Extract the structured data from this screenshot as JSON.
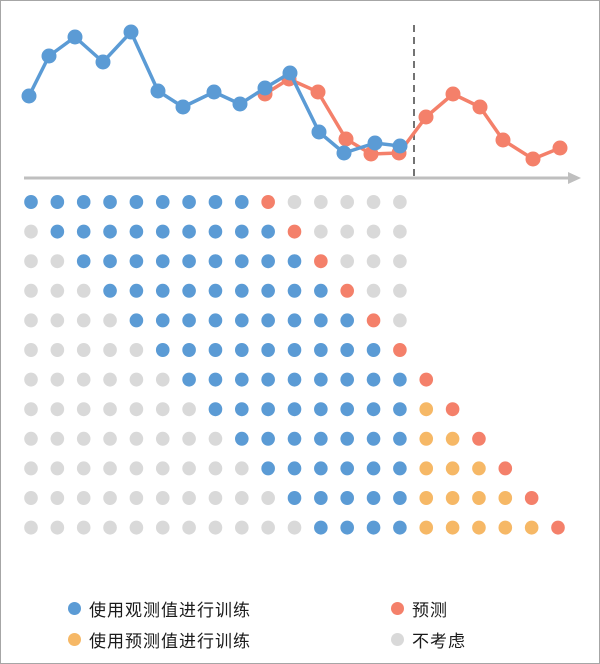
{
  "colors": {
    "observed": "#5b9bd5",
    "prediction": "#f4806a",
    "predicted_train": "#f6b866",
    "ignored": "#d9d9d9",
    "axis": "#bfbfbf",
    "divider": "#737373"
  },
  "legend": {
    "items": [
      {
        "key": "observed",
        "label": "使用观测值进行训练",
        "color": "#5b9bd5"
      },
      {
        "key": "prediction",
        "label": "预测",
        "color": "#f4806a"
      },
      {
        "key": "predicted_train",
        "label": "使用预测值进行训练",
        "color": "#f6b866"
      },
      {
        "key": "ignored",
        "label": "不考虑",
        "color": "#d9d9d9"
      }
    ]
  },
  "chart_data": [
    {
      "type": "line",
      "title": "",
      "xlabel": "",
      "ylabel": "",
      "grid": false,
      "notes": "Values are approximate pixel-derived heights (higher = larger). Dashed vertical divider between observed region and forecast region at x index ~15.",
      "series": [
        {
          "name": "使用观测值进行训练",
          "color": "#5b9bd5",
          "points": [
            [
              29,
              96
            ],
            [
              49,
              56
            ],
            [
              75,
              37
            ],
            [
              103,
              62
            ],
            [
              131,
              32
            ],
            [
              158,
              91
            ],
            [
              183,
              107
            ],
            [
              214,
              92
            ],
            [
              240,
              104
            ],
            [
              265,
              88
            ],
            [
              290,
              73
            ],
            [
              319,
              132
            ],
            [
              344,
              153
            ],
            [
              375,
              143
            ],
            [
              400,
              146
            ]
          ]
        },
        {
          "name": "预测",
          "color": "#f4806a",
          "points": [
            [
              265,
              94
            ],
            [
              289,
              79
            ],
            [
              318,
              92
            ],
            [
              346,
              139
            ],
            [
              371,
              154
            ],
            [
              399,
              153
            ],
            [
              426,
              117
            ],
            [
              453,
              94
            ],
            [
              480,
              107
            ],
            [
              503,
              140
            ],
            [
              533,
              159
            ],
            [
              560,
              148
            ]
          ]
        }
      ],
      "divider_x": 414
    },
    {
      "type": "heatmap",
      "title": "",
      "notes": "Dot matrix: 12 rows x 21 columns. Codes: B=使用观测值进行训练, O=使用预测值进行训练, R=预测, G=不考虑, empty=no dot",
      "rows": [
        "BBBBBBBBBRGGGGG",
        "GBBBBBBBBBRGGGG",
        "GGBBBBBBBBBRGGG",
        "GGGBBBBBBBBBRGG",
        "GGGGBBBBBBBBBRG",
        "GGGGGBBBBBBBBBR",
        "GGGGGGBBBBBBBBBR",
        "GGGGGGGBBBBBBBBOR",
        "GGGGGGGGBBBBBBBOOR",
        "GGGGGGGGGBBBBBBOOOR",
        "GGGGGGGGGGBBBBBOOOOR",
        "GGGGGGGGGGGBBBBOOOOOR"
      ]
    }
  ]
}
